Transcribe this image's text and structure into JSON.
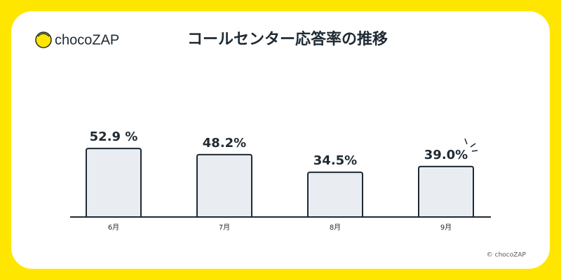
{
  "brand": "chocoZAP",
  "copyright": "© chocoZAP",
  "chart_data": {
    "type": "bar",
    "title": "コールセンター応答率の推移",
    "categories": [
      "6月",
      "7月",
      "8月",
      "9月"
    ],
    "values": [
      52.9,
      48.2,
      34.5,
      39.0
    ],
    "value_labels": [
      "52.9 %",
      "48.2%",
      "34.5%",
      "39.0%"
    ],
    "color": "#e9edf2"
  }
}
